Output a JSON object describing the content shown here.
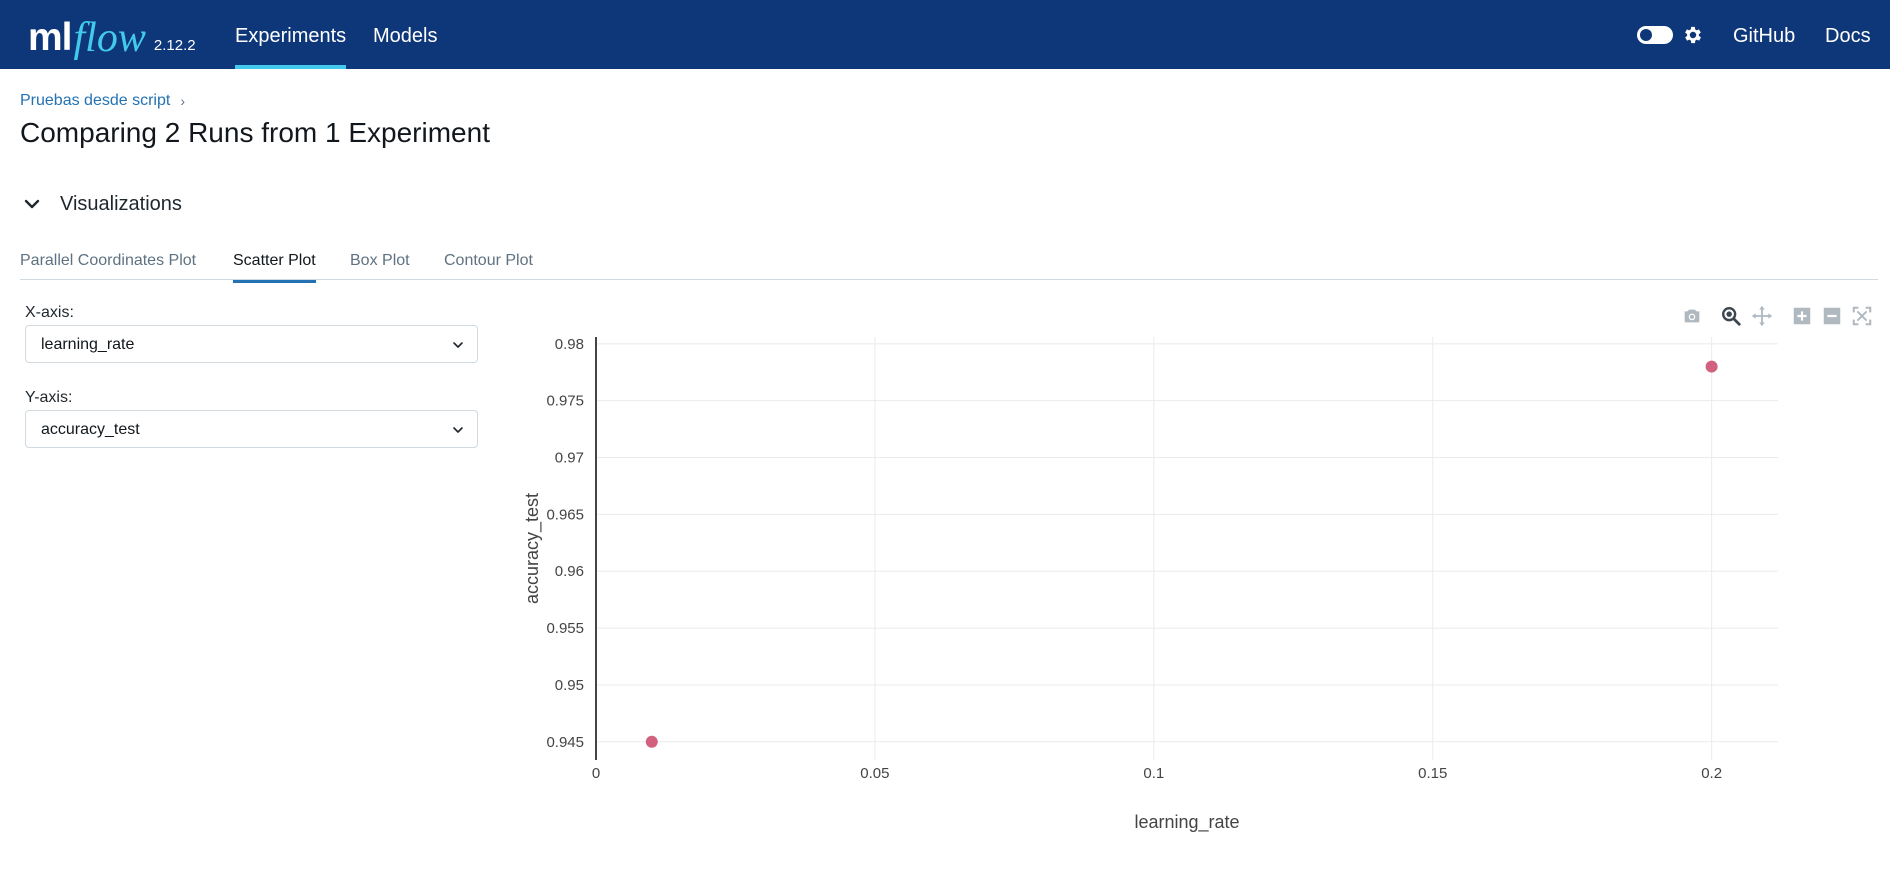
{
  "header": {
    "logo_ml": "ml",
    "logo_flow": "flow",
    "version": "2.12.2",
    "nav": {
      "experiments": "Experiments",
      "models": "Models",
      "github": "GitHub",
      "docs": "Docs"
    },
    "active_nav": "Experiments",
    "dark_mode_toggle": "off",
    "colors": {
      "bar": "#0e3779",
      "accent": "#43c9ed"
    }
  },
  "breadcrumb": {
    "experiment": "Pruebas desde script",
    "separator": "›"
  },
  "page_title": "Comparing 2 Runs from 1 Experiment",
  "section": {
    "title": "Visualizations",
    "expanded": true
  },
  "tabs": [
    {
      "label": "Parallel Coordinates Plot",
      "active": false
    },
    {
      "label": "Scatter Plot",
      "active": true
    },
    {
      "label": "Box Plot",
      "active": false
    },
    {
      "label": "Contour Plot",
      "active": false
    }
  ],
  "controls": {
    "x_axis": {
      "label": "X-axis:",
      "value": "learning_rate"
    },
    "y_axis": {
      "label": "Y-axis:",
      "value": "accuracy_test"
    }
  },
  "modebar": [
    "camera-icon",
    "zoom-icon",
    "pan-icon",
    "zoom-in-icon",
    "zoom-out-icon",
    "autoscale-icon"
  ],
  "chart_data": {
    "type": "scatter",
    "title": "",
    "xlabel": "learning_rate",
    "ylabel": "accuracy_test",
    "x_ticks": [
      "0",
      "0.05",
      "0.1",
      "0.15",
      "0.2"
    ],
    "y_ticks": [
      "0.98",
      "0.975",
      "0.97",
      "0.965",
      "0.96",
      "0.955",
      "0.95",
      "0.945"
    ],
    "xlim": [
      0,
      0.2119
    ],
    "ylim": [
      0.9434,
      0.9806
    ],
    "grid": true,
    "marker_color": "#d1617f",
    "points": [
      {
        "x": 0.01,
        "y": 0.945
      },
      {
        "x": 0.2,
        "y": 0.978
      }
    ]
  }
}
